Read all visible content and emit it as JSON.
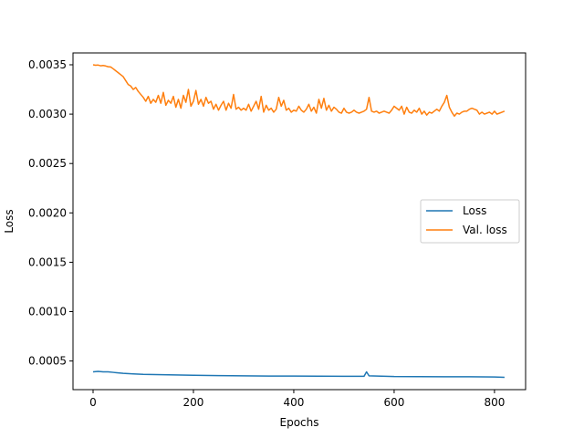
{
  "chart_data": {
    "type": "line",
    "title": "",
    "xlabel": "Epochs",
    "ylabel": "Loss",
    "xlim": [
      -40,
      862
    ],
    "ylim": [
      0.00021,
      0.00362
    ],
    "xticks": [
      0,
      200,
      400,
      600,
      800
    ],
    "xtick_labels": [
      "0",
      "200",
      "400",
      "600",
      "800"
    ],
    "yticks": [
      0.0005,
      0.001,
      0.0015,
      0.002,
      0.0025,
      0.003,
      0.0035
    ],
    "ytick_labels": [
      "0.0005",
      "0.0010",
      "0.0015",
      "0.0020",
      "0.0025",
      "0.0030",
      "0.0035"
    ],
    "grid": false,
    "legend_position": "center-right",
    "series": [
      {
        "name": "Loss",
        "color": "#1f77b4",
        "x": [
          0,
          10,
          20,
          30,
          40,
          50,
          60,
          80,
          100,
          150,
          200,
          250,
          300,
          350,
          400,
          450,
          500,
          540,
          545,
          550,
          600,
          650,
          700,
          750,
          800,
          820
        ],
        "y": [
          0.00039,
          0.000395,
          0.00039,
          0.00039,
          0.000385,
          0.00038,
          0.000375,
          0.00037,
          0.000365,
          0.00036,
          0.000355,
          0.000352,
          0.00035,
          0.000348,
          0.000347,
          0.000346,
          0.000345,
          0.000345,
          0.00039,
          0.00035,
          0.000343,
          0.000342,
          0.00034,
          0.00034,
          0.000338,
          0.000335
        ]
      },
      {
        "name": "Val. loss",
        "color": "#ff7f0e",
        "x": [
          0,
          5,
          10,
          15,
          20,
          25,
          30,
          35,
          40,
          45,
          50,
          55,
          60,
          65,
          70,
          75,
          80,
          85,
          90,
          95,
          100,
          105,
          110,
          115,
          120,
          125,
          130,
          135,
          140,
          145,
          150,
          155,
          160,
          165,
          170,
          175,
          180,
          185,
          190,
          195,
          200,
          205,
          210,
          215,
          220,
          225,
          230,
          235,
          240,
          245,
          250,
          255,
          260,
          265,
          270,
          275,
          280,
          285,
          290,
          295,
          300,
          305,
          310,
          315,
          320,
          325,
          330,
          335,
          340,
          345,
          350,
          355,
          360,
          365,
          370,
          375,
          380,
          385,
          390,
          395,
          400,
          405,
          410,
          415,
          420,
          425,
          430,
          435,
          440,
          445,
          450,
          455,
          460,
          465,
          470,
          475,
          480,
          485,
          490,
          495,
          500,
          505,
          510,
          515,
          520,
          525,
          530,
          535,
          540,
          545,
          550,
          555,
          560,
          565,
          570,
          575,
          580,
          585,
          590,
          595,
          600,
          605,
          610,
          615,
          620,
          625,
          630,
          635,
          640,
          645,
          650,
          655,
          660,
          665,
          670,
          675,
          680,
          685,
          690,
          695,
          700,
          705,
          710,
          715,
          720,
          725,
          730,
          735,
          740,
          745,
          750,
          755,
          760,
          765,
          770,
          775,
          780,
          785,
          790,
          795,
          800,
          805,
          810,
          815,
          820
        ],
        "y": [
          0.0035,
          0.003495,
          0.003497,
          0.00349,
          0.003493,
          0.003488,
          0.00348,
          0.003478,
          0.00346,
          0.00344,
          0.00342,
          0.0034,
          0.00338,
          0.00334,
          0.0033,
          0.003285,
          0.00325,
          0.00327,
          0.00323,
          0.0032,
          0.00317,
          0.00313,
          0.00318,
          0.00311,
          0.00315,
          0.00312,
          0.00319,
          0.00311,
          0.00322,
          0.00309,
          0.00314,
          0.00311,
          0.00318,
          0.00307,
          0.00315,
          0.00306,
          0.00319,
          0.00312,
          0.00325,
          0.00308,
          0.00313,
          0.00324,
          0.0031,
          0.00315,
          0.00308,
          0.00317,
          0.00311,
          0.00313,
          0.00305,
          0.0031,
          0.00304,
          0.00309,
          0.00313,
          0.00304,
          0.00311,
          0.00306,
          0.0032,
          0.00305,
          0.00307,
          0.00304,
          0.00306,
          0.00304,
          0.0031,
          0.00303,
          0.00308,
          0.00313,
          0.00305,
          0.00318,
          0.00302,
          0.00309,
          0.00304,
          0.00306,
          0.00302,
          0.00305,
          0.00317,
          0.00308,
          0.00314,
          0.00304,
          0.00306,
          0.00302,
          0.00304,
          0.00303,
          0.00308,
          0.00304,
          0.00302,
          0.00305,
          0.0031,
          0.00303,
          0.00307,
          0.00301,
          0.00315,
          0.00306,
          0.00316,
          0.00304,
          0.00309,
          0.00303,
          0.00307,
          0.00305,
          0.00302,
          0.00301,
          0.00306,
          0.00302,
          0.00301,
          0.00302,
          0.00304,
          0.00302,
          0.00301,
          0.00302,
          0.00303,
          0.00305,
          0.00317,
          0.00303,
          0.00302,
          0.00303,
          0.00301,
          0.00302,
          0.00303,
          0.00302,
          0.00301,
          0.00304,
          0.00308,
          0.00306,
          0.00304,
          0.00308,
          0.003,
          0.00307,
          0.00302,
          0.00301,
          0.00304,
          0.00302,
          0.00306,
          0.003,
          0.00303,
          0.00299,
          0.00302,
          0.00301,
          0.00303,
          0.00305,
          0.00303,
          0.00308,
          0.00312,
          0.00319,
          0.00307,
          0.00302,
          0.00298,
          0.00301,
          0.003,
          0.00302,
          0.00303,
          0.00303,
          0.00305,
          0.00306,
          0.00305,
          0.00304,
          0.003,
          0.00302,
          0.003,
          0.00301,
          0.00302,
          0.003,
          0.00303,
          0.003,
          0.00301,
          0.00302,
          0.00303
        ]
      }
    ]
  }
}
